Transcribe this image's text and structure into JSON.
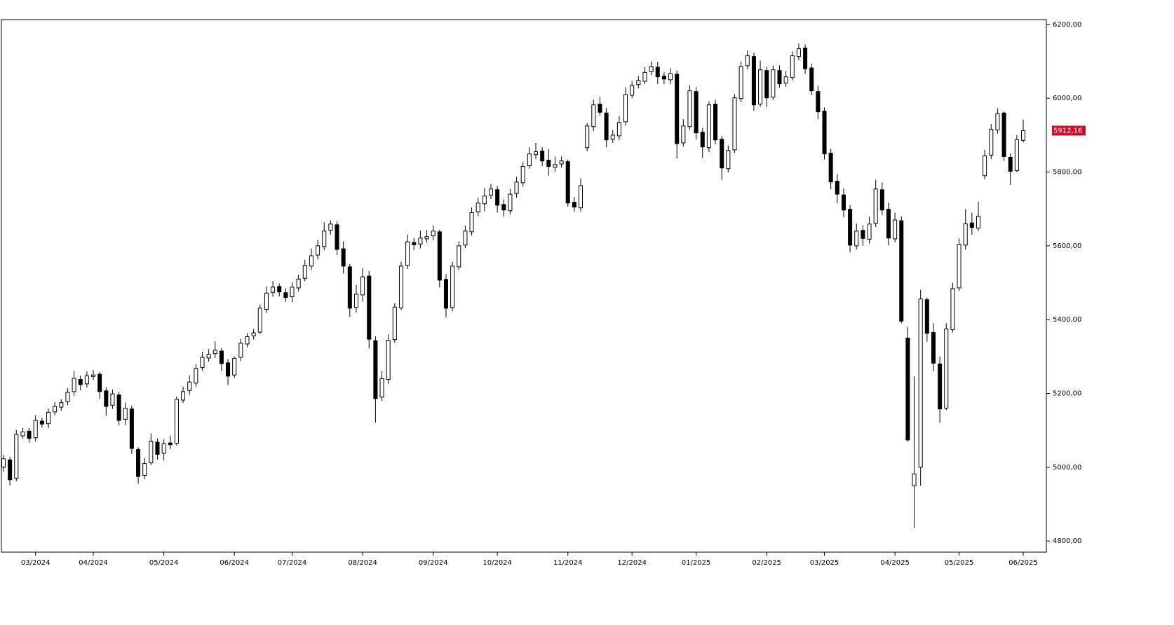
{
  "chart_data": {
    "type": "candlestick",
    "categories": [
      null,
      null,
      null,
      null,
      null,
      "03/2024",
      null,
      null,
      null,
      null,
      null,
      null,
      null,
      null,
      "04/2024",
      null,
      null,
      null,
      null,
      null,
      null,
      null,
      null,
      null,
      null,
      "05/2024",
      null,
      null,
      null,
      null,
      null,
      null,
      null,
      null,
      null,
      null,
      "06/2024",
      null,
      null,
      null,
      null,
      null,
      null,
      null,
      null,
      "07/2024",
      null,
      null,
      null,
      null,
      null,
      null,
      null,
      null,
      null,
      null,
      "08/2024",
      null,
      null,
      null,
      null,
      null,
      null,
      null,
      null,
      null,
      null,
      "09/2024",
      null,
      null,
      null,
      null,
      null,
      null,
      null,
      null,
      null,
      "10/2024",
      null,
      null,
      null,
      null,
      null,
      null,
      null,
      null,
      null,
      null,
      "11/2024",
      null,
      null,
      null,
      null,
      null,
      null,
      null,
      null,
      null,
      "12/2024",
      null,
      null,
      null,
      null,
      null,
      null,
      null,
      null,
      null,
      "01/2025",
      null,
      null,
      null,
      null,
      null,
      null,
      null,
      null,
      null,
      null,
      "02/2025",
      null,
      null,
      null,
      null,
      null,
      null,
      null,
      null,
      "03/2025",
      null,
      null,
      null,
      null,
      null,
      null,
      null,
      null,
      null,
      null,
      "04/2025",
      null,
      null,
      null,
      null,
      null,
      null,
      null,
      null,
      null,
      "05/2025",
      null,
      null,
      null,
      null,
      null,
      null,
      null,
      null,
      null,
      "06/2025"
    ],
    "open": [
      5000,
      5020,
      4970,
      5085,
      5098,
      5080,
      5125,
      5118,
      5150,
      5163,
      5178,
      5205,
      5238,
      5226,
      5246,
      5252,
      5207,
      5168,
      5196,
      5130,
      5158,
      5048,
      4978,
      5012,
      5068,
      5038,
      5066,
      5065,
      5182,
      5208,
      5228,
      5270,
      5296,
      5308,
      5315,
      5283,
      5250,
      5298,
      5334,
      5356,
      5366,
      5428,
      5474,
      5490,
      5473,
      5462,
      5486,
      5512,
      5545,
      5575,
      5598,
      5642,
      5657,
      5592,
      5543,
      5433,
      5467,
      5518,
      5343,
      5190,
      5238,
      5346,
      5432,
      5547,
      5609,
      5605,
      5619,
      5627,
      5638,
      5509,
      5433,
      5543,
      5602,
      5638,
      5692,
      5714,
      5737,
      5752,
      5712,
      5695,
      5742,
      5771,
      5817,
      5847,
      5857,
      5832,
      5813,
      5822,
      5828,
      5718,
      5703,
      5866,
      5923,
      5984,
      5960,
      5889,
      5898,
      5936,
      6008,
      6037,
      6046,
      6072,
      6084,
      6060,
      6050,
      6065,
      5879,
      5923,
      6018,
      5908,
      5866,
      5984,
      5889,
      5809,
      5860,
      5999,
      6088,
      6113,
      5984,
      6075,
      6003,
      6075,
      6041,
      6056,
      6113,
      6136,
      6082,
      6018,
      5965,
      5851,
      5775,
      5738,
      5699,
      5600,
      5642,
      5618,
      5661,
      5752,
      5699,
      5619,
      5668,
      5350,
      4950,
      5000,
      5454,
      5365,
      5280,
      5160,
      5373,
      5486,
      5602,
      5662,
      5648,
      5790,
      5846,
      5914,
      5960,
      5840,
      5804,
      5886
    ],
    "high": [
      5033,
      5028,
      5101,
      5106,
      5106,
      5141,
      5134,
      5159,
      5177,
      5184,
      5214,
      5261,
      5248,
      5260,
      5264,
      5258,
      5217,
      5211,
      5204,
      5175,
      5167,
      5054,
      5025,
      5092,
      5078,
      5076,
      5086,
      5192,
      5219,
      5249,
      5279,
      5313,
      5320,
      5341,
      5323,
      5293,
      5301,
      5348,
      5364,
      5375,
      5441,
      5490,
      5505,
      5498,
      5485,
      5502,
      5522,
      5562,
      5593,
      5616,
      5664,
      5669,
      5666,
      5612,
      5551,
      5494,
      5540,
      5532,
      5355,
      5260,
      5360,
      5444,
      5557,
      5630,
      5621,
      5641,
      5643,
      5655,
      5644,
      5523,
      5557,
      5612,
      5655,
      5704,
      5731,
      5757,
      5768,
      5762,
      5726,
      5754,
      5787,
      5827,
      5867,
      5879,
      5867,
      5862,
      5842,
      5842,
      5834,
      5732,
      5783,
      5933,
      5996,
      6004,
      5974,
      5914,
      5952,
      6030,
      6047,
      6060,
      6085,
      6100,
      6099,
      6070,
      6081,
      6075,
      5943,
      6035,
      6030,
      5920,
      5992,
      5996,
      5897,
      5872,
      6011,
      6100,
      6129,
      6123,
      6102,
      6085,
      6089,
      6089,
      6074,
      6127,
      6148,
      6146,
      6094,
      6034,
      5975,
      5863,
      5795,
      5756,
      5711,
      5660,
      5656,
      5679,
      5779,
      5772,
      5717,
      5690,
      5680,
      5380,
      5246,
      5481,
      5460,
      5390,
      5300,
      5390,
      5500,
      5620,
      5700,
      5690,
      5720,
      5860,
      5930,
      5972,
      5964,
      5850,
      5900,
      5942
    ],
    "low": [
      4988,
      4951,
      4962,
      5077,
      5066,
      5070,
      5107,
      5106,
      5141,
      5153,
      5168,
      5193,
      5209,
      5216,
      5237,
      5185,
      5140,
      5158,
      5113,
      5114,
      5036,
      4955,
      4968,
      5006,
      5021,
      5018,
      5049,
      5059,
      5174,
      5196,
      5218,
      5262,
      5286,
      5296,
      5261,
      5223,
      5242,
      5288,
      5325,
      5346,
      5360,
      5418,
      5462,
      5463,
      5448,
      5447,
      5476,
      5504,
      5535,
      5563,
      5588,
      5630,
      5575,
      5525,
      5407,
      5419,
      5449,
      5322,
      5121,
      5180,
      5226,
      5338,
      5426,
      5537,
      5589,
      5593,
      5609,
      5615,
      5487,
      5406,
      5423,
      5535,
      5594,
      5628,
      5680,
      5694,
      5727,
      5690,
      5679,
      5685,
      5730,
      5761,
      5809,
      5835,
      5816,
      5790,
      5801,
      5812,
      5706,
      5693,
      5693,
      5856,
      5911,
      5952,
      5867,
      5879,
      5886,
      5926,
      6000,
      6027,
      6038,
      6062,
      6038,
      6038,
      6038,
      5837,
      5869,
      5915,
      5888,
      5838,
      5854,
      5875,
      5779,
      5799,
      5852,
      5989,
      6078,
      5966,
      5976,
      5976,
      5995,
      6029,
      6031,
      6048,
      6103,
      6066,
      6008,
      5943,
      5834,
      5753,
      5715,
      5677,
      5582,
      5590,
      5600,
      5606,
      5651,
      5683,
      5601,
      5609,
      5390,
      5069,
      4835,
      4950,
      5340,
      5260,
      5120,
      5155,
      5365,
      5478,
      5590,
      5630,
      5640,
      5780,
      5835,
      5904,
      5830,
      5765,
      5800,
      5880
    ],
    "close": [
      5023,
      4966,
      5089,
      5096,
      5078,
      5127,
      5117,
      5149,
      5165,
      5175,
      5203,
      5241,
      5224,
      5248,
      5250,
      5205,
      5165,
      5199,
      5127,
      5160,
      5051,
      4975,
      5010,
      5070,
      5035,
      5064,
      5061,
      5184,
      5205,
      5231,
      5268,
      5298,
      5306,
      5317,
      5281,
      5247,
      5295,
      5336,
      5354,
      5364,
      5431,
      5472,
      5488,
      5475,
      5460,
      5488,
      5510,
      5547,
      5573,
      5600,
      5640,
      5659,
      5590,
      5545,
      5431,
      5469,
      5516,
      5347,
      5186,
      5240,
      5344,
      5434,
      5545,
      5611,
      5603,
      5621,
      5625,
      5640,
      5507,
      5431,
      5545,
      5600,
      5640,
      5690,
      5716,
      5735,
      5754,
      5710,
      5697,
      5740,
      5773,
      5815,
      5849,
      5855,
      5830,
      5815,
      5820,
      5830,
      5716,
      5705,
      5763,
      5925,
      5982,
      5962,
      5887,
      5900,
      5934,
      6010,
      6035,
      6048,
      6070,
      6086,
      6058,
      6052,
      6067,
      5877,
      5925,
      6020,
      5906,
      5868,
      5982,
      5887,
      5811,
      5858,
      6001,
      6086,
      6115,
      5982,
      6077,
      6001,
      6077,
      6039,
      6058,
      6115,
      6134,
      6080,
      6020,
      5963,
      5849,
      5773,
      5740,
      5697,
      5602,
      5640,
      5620,
      5659,
      5754,
      5697,
      5621,
      5670,
      5396,
      5074,
      4982,
      5456,
      5363,
      5282,
      5158,
      5375,
      5484,
      5604,
      5660,
      5650,
      5680,
      5844,
      5916,
      5958,
      5842,
      5802,
      5888,
      5912.16
    ],
    "up_color": "#ffffff",
    "down_color": "#000000",
    "last_price": {
      "value": 5912.16,
      "label": "5912,16"
    },
    "last_price_color": "#c8102e",
    "ylim": [
      4770,
      6213
    ],
    "yticks": [
      {
        "value": 4800,
        "label": "4800,00"
      },
      {
        "value": 5000,
        "label": "5000,00"
      },
      {
        "value": 5200,
        "label": "5200,00"
      },
      {
        "value": 5400,
        "label": "5400,00"
      },
      {
        "value": 5600,
        "label": "5600,00"
      },
      {
        "value": 5800,
        "label": "5800,00"
      },
      {
        "value": 6000,
        "label": "6000,00"
      },
      {
        "value": 6200,
        "label": "6200,00"
      }
    ],
    "grid": false
  }
}
